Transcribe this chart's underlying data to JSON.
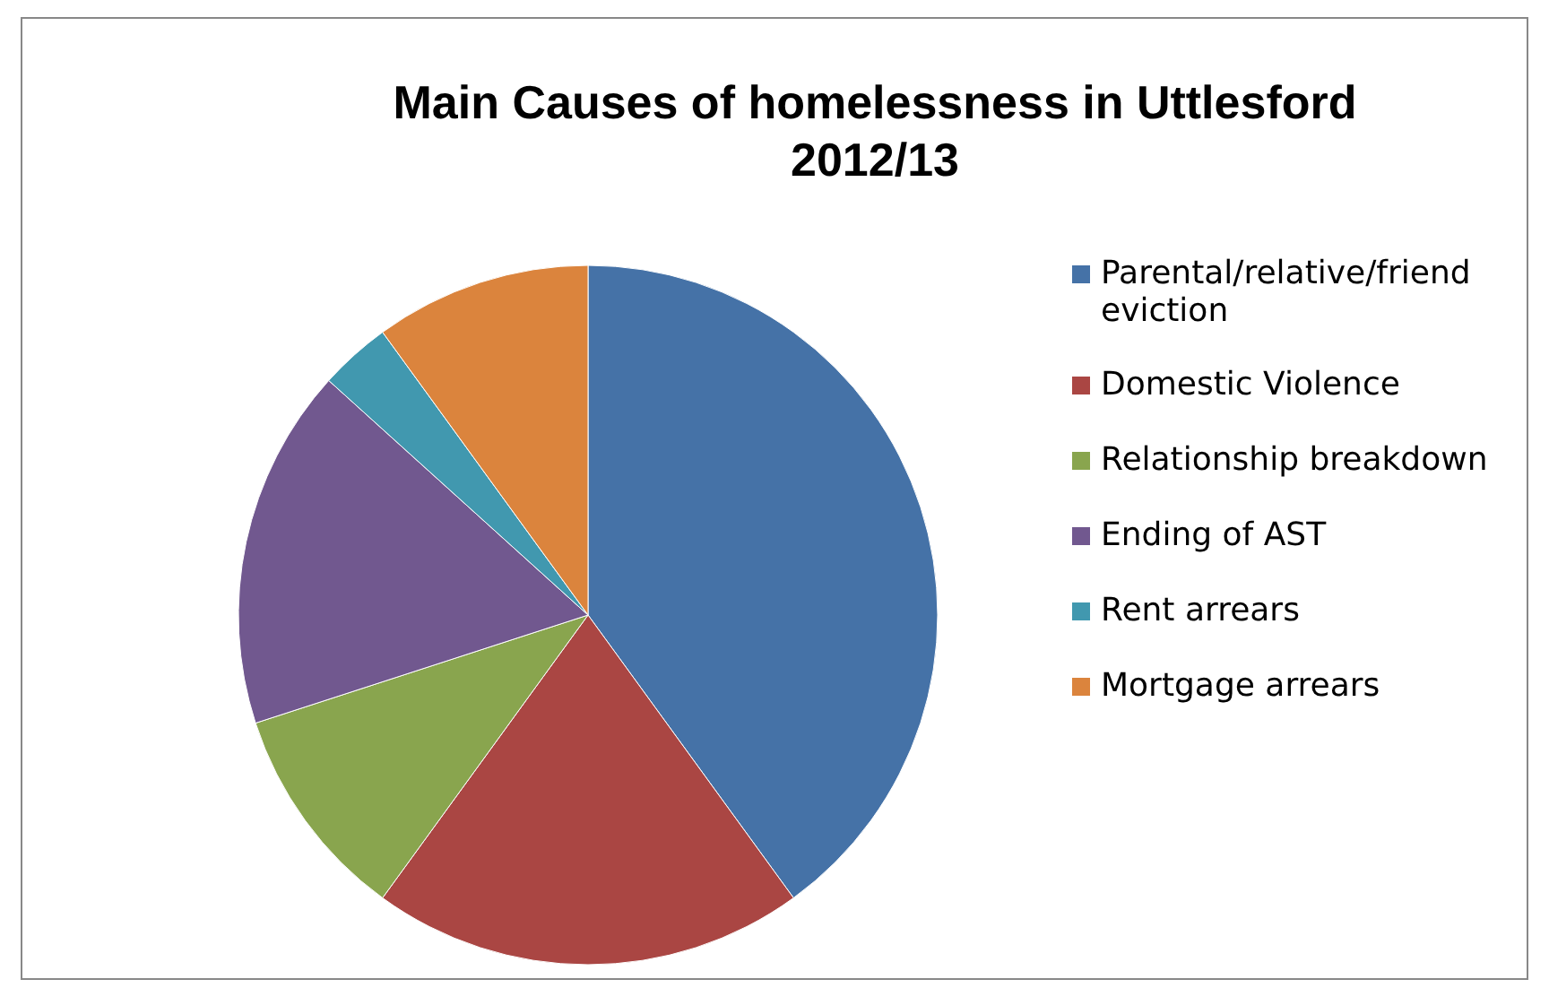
{
  "chart_data": {
    "type": "pie",
    "title": "Main Causes of homelessness in Uttlesford 2012/13",
    "categories": [
      "Parental/relative/friend eviction",
      "Domestic Violence",
      "Relationship breakdown",
      "Ending of AST",
      "Rent arrears",
      "Mortgage arrears"
    ],
    "values": [
      40,
      20,
      10,
      16.7,
      3.3,
      10
    ],
    "colors": [
      "#4572a7",
      "#aa4643",
      "#89a54e",
      "#71588f",
      "#4198af",
      "#db843d"
    ],
    "legend": "right"
  }
}
